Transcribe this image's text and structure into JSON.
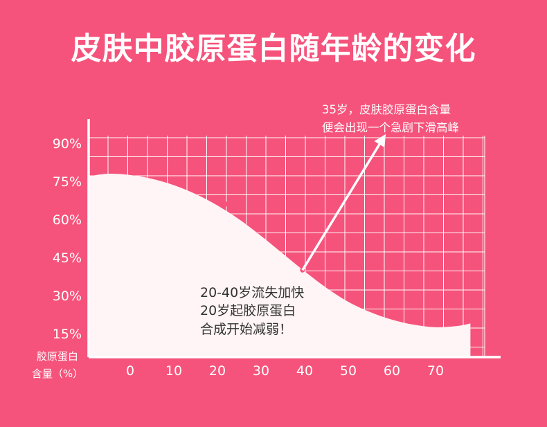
{
  "title": "皮肤中胶原蛋白随年龄的变化",
  "annotation": {
    "line1": "35岁，皮肤胶原蛋白含量",
    "line2": "便会出现一个急剧下滑高峰"
  },
  "callout": {
    "line1": "20-40岁流失加快",
    "line2": "20岁起胶原蛋白",
    "line3": "合成开始减弱！"
  },
  "colors": {
    "background": "#f5537b",
    "grid": "#ffffff",
    "fill": "#fff4f6",
    "text_dark": "#333333"
  },
  "chart_data": {
    "type": "area",
    "title": "皮肤中胶原蛋白随年龄的变化",
    "xlabel": "",
    "ylabel": [
      "胶原蛋白",
      "含量（%）"
    ],
    "x_ticks": [
      0,
      10,
      20,
      30,
      40,
      50,
      60,
      70
    ],
    "y_ticks": [
      "15%",
      "30%",
      "45%",
      "60%",
      "75%",
      "90%"
    ],
    "y_tick_values": [
      15,
      30,
      45,
      60,
      75,
      90
    ],
    "xlim": [
      -9,
      80
    ],
    "ylim": [
      8,
      94
    ],
    "grid": true,
    "series": [
      {
        "x": [
          -9,
          -5,
          0,
          5,
          10,
          15,
          20,
          25,
          30,
          35,
          40,
          45,
          50,
          55,
          60,
          65,
          70,
          75,
          78
        ],
        "values": [
          77,
          78,
          77.5,
          76,
          73.5,
          70,
          65.5,
          60,
          53.5,
          46.5,
          39.5,
          33,
          27.5,
          23.5,
          20.5,
          18.5,
          17.5,
          18,
          19
        ]
      }
    ],
    "markers": [
      {
        "x": 22,
        "y": 66
      },
      {
        "x": 39.5,
        "y": 40
      },
      {
        "x": 44,
        "y": 36
      }
    ],
    "arrow": {
      "from": [
        39.5,
        40
      ],
      "to": [
        58,
        92
      ]
    }
  }
}
